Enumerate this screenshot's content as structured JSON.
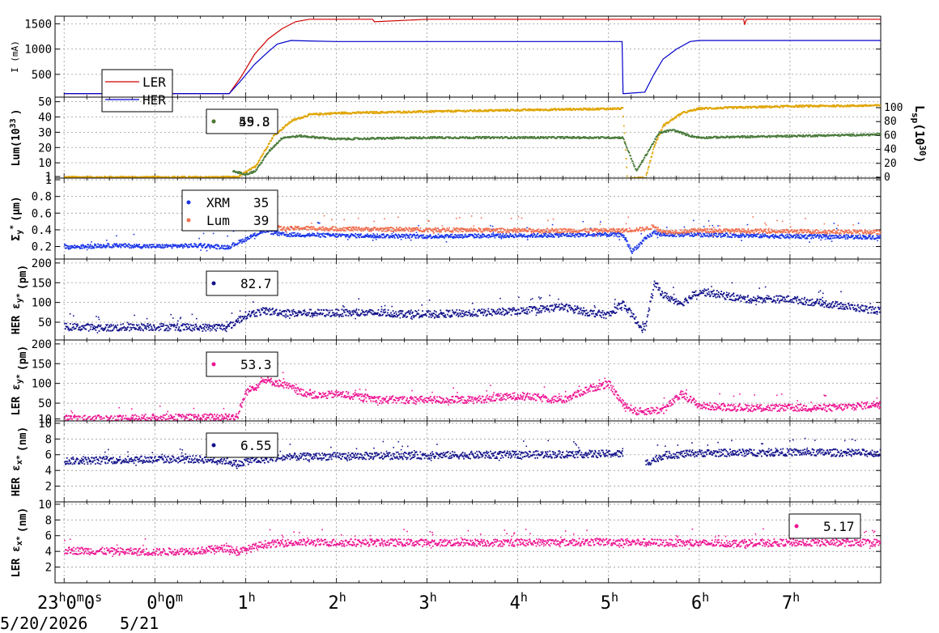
{
  "chart_data": [
    {
      "type": "line",
      "ylabel": "I (mA)",
      "yticks": [
        "500",
        "1000",
        "1500"
      ],
      "ylim": [
        50,
        1650
      ],
      "series": [
        {
          "name": "LER",
          "color": "#d00000",
          "x": [
            -1,
            -0.02,
            0.82,
            0.95,
            1.1,
            1.25,
            1.4,
            1.55,
            1.7,
            1.85,
            2.0,
            2.4,
            2.42,
            3.0,
            4.0,
            5.15,
            5.18,
            5.4,
            5.5,
            5.6,
            5.75,
            5.9,
            6.0,
            6.49,
            6.5,
            6.52,
            7.0,
            8.0
          ],
          "y": [
            120,
            120,
            120,
            450,
            900,
            1200,
            1400,
            1540,
            1590,
            1590,
            1590,
            1590,
            1540,
            1590,
            1590,
            1590,
            1590,
            1590,
            1590,
            1590,
            1590,
            1590,
            1590,
            1590,
            1480,
            1590,
            1590,
            1590
          ]
        },
        {
          "name": "HER",
          "color": "#0000cc",
          "x": [
            -1,
            0.82,
            0.95,
            1.1,
            1.25,
            1.35,
            1.5,
            1.7,
            2.0,
            3.0,
            4.0,
            5.15,
            5.16,
            5.18,
            5.4,
            5.5,
            5.6,
            5.75,
            5.9,
            6.0,
            7.0,
            8.0
          ],
          "y": [
            120,
            120,
            380,
            700,
            950,
            1100,
            1170,
            1160,
            1150,
            1150,
            1150,
            1150,
            120,
            120,
            150,
            500,
            800,
            1000,
            1150,
            1170,
            1170,
            1170
          ]
        }
      ],
      "legend": [
        "LER",
        "HER"
      ]
    },
    {
      "type": "line",
      "ylabel": "Lum(10",
      "ylabel_sup": "33",
      "ylabel_tail": ")",
      "yticks": [
        "1",
        "10",
        "20",
        "30",
        "40",
        "50"
      ],
      "ylim": [
        0,
        53
      ],
      "y2label": "L",
      "y2label_sub": "sp",
      "y2label_mid": "(10",
      "y2label_sup": "30",
      "y2label_tail": ")",
      "y2ticks": [
        "0",
        "20",
        "40",
        "60",
        "80",
        "100"
      ],
      "y2lim": [
        0,
        100
      ],
      "legend_values": [
        "59.3",
        "45.8"
      ],
      "series": [
        {
          "color": "#e0a400",
          "x": [
            -1,
            0.9,
            1.1,
            1.3,
            1.5,
            1.7,
            2.0,
            2.5,
            3.0,
            4.0,
            5.15,
            5.2,
            5.4,
            5.5,
            5.6,
            5.8,
            6.0,
            7.0,
            8.0
          ],
          "y": [
            1,
            1,
            8,
            28,
            38,
            42,
            43,
            43.5,
            44,
            45,
            46,
            0.5,
            0.5,
            22,
            35,
            43,
            46,
            47.5,
            48
          ]
        },
        {
          "color": "#4a7a3a",
          "x": [
            -1,
            0.8,
            0.85,
            1.0,
            1.1,
            1.25,
            1.4,
            1.6,
            1.8,
            2.0,
            3.0,
            4.0,
            5.15,
            5.3,
            5.35,
            5.45,
            5.55,
            5.7,
            5.9,
            6.0,
            7.0,
            8.0
          ],
          "y": [
            null,
            null,
            5,
            3,
            5,
            18,
            27,
            28,
            27,
            26,
            27,
            27,
            27,
            5,
            10,
            20,
            30,
            32,
            28,
            27,
            28,
            29
          ]
        }
      ]
    },
    {
      "type": "scatter",
      "ylabel": "Σ",
      "ylabel_sub": "y",
      "ylabel_sup": "*",
      "ylabel_tail": "(μm)",
      "yticks": [
        "0.2",
        "0.4",
        "0.6",
        "0.8",
        "1"
      ],
      "ylim": [
        0.05,
        1.02
      ],
      "legend": [
        "XRM",
        "Lum"
      ],
      "legend_values": [
        "35",
        "39"
      ],
      "series": [
        {
          "name": "XRM",
          "color": "#1a35e8",
          "x": [
            -1,
            -0.5,
            0,
            0.5,
            0.8,
            1.0,
            1.2,
            1.4,
            1.6,
            2.0,
            3.0,
            4.0,
            5.0,
            5.15,
            5.25,
            5.4,
            5.5,
            5.6,
            6.0,
            7.0,
            8.0
          ],
          "y": [
            0.2,
            0.22,
            0.21,
            0.22,
            0.2,
            0.3,
            0.4,
            0.35,
            0.35,
            0.34,
            0.33,
            0.34,
            0.35,
            0.35,
            0.15,
            0.3,
            0.38,
            0.35,
            0.35,
            0.33,
            0.32
          ]
        },
        {
          "name": "Lum",
          "color": "#f07050",
          "x": [
            1.15,
            1.4,
            1.6,
            2.0,
            3.0,
            4.0,
            5.0,
            5.15,
            5.4,
            5.5,
            5.6,
            6.0,
            7.0,
            8.0
          ],
          "y": [
            0.5,
            0.42,
            0.43,
            0.42,
            0.41,
            0.4,
            0.4,
            0.4,
            0.42,
            0.45,
            0.38,
            0.4,
            0.39,
            0.38
          ]
        }
      ]
    },
    {
      "type": "scatter",
      "ylabel": "HER ε",
      "ylabel_sub": "y*",
      "ylabel_tail": "(pm)",
      "yticks": [
        "50",
        "100",
        "150",
        "200"
      ],
      "ylim": [
        5,
        210
      ],
      "legend_values": [
        "82.7"
      ],
      "series": [
        {
          "color": "#12128a",
          "x": [
            -1,
            -0.5,
            0,
            0.5,
            0.8,
            1.0,
            1.2,
            1.5,
            2.0,
            2.5,
            3.0,
            3.5,
            4.0,
            4.5,
            4.8,
            5.0,
            5.15,
            5.35,
            5.4,
            5.5,
            5.6,
            5.8,
            6.0,
            6.5,
            7.0,
            7.5,
            8.0
          ],
          "y": [
            40,
            38,
            40,
            38,
            40,
            70,
            80,
            75,
            75,
            75,
            72,
            75,
            80,
            90,
            75,
            70,
            100,
            40,
            40,
            150,
            120,
            100,
            130,
            110,
            110,
            95,
            80
          ]
        }
      ]
    },
    {
      "type": "scatter",
      "ylabel": "LER ε",
      "ylabel_sub": "y*",
      "ylabel_tail": "(pm)",
      "yticks": [
        "10",
        "50",
        "100",
        "150",
        "200"
      ],
      "ylim": [
        5,
        210
      ],
      "legend_values": [
        "53.3"
      ],
      "series": [
        {
          "color": "#ee1493",
          "x": [
            -1,
            -0.5,
            0,
            0.5,
            0.9,
            1.0,
            1.2,
            1.4,
            1.6,
            1.8,
            2.0,
            2.5,
            3.0,
            3.5,
            4.0,
            4.5,
            4.8,
            5.0,
            5.15,
            5.3,
            5.6,
            5.8,
            6.0,
            6.5,
            7.0,
            7.5,
            8.0
          ],
          "y": [
            12,
            12,
            15,
            15,
            18,
            80,
            110,
            100,
            80,
            70,
            75,
            60,
            60,
            60,
            70,
            60,
            90,
            100,
            50,
            30,
            35,
            75,
            45,
            40,
            40,
            40,
            50
          ]
        }
      ]
    },
    {
      "type": "scatter",
      "ylabel": "HER ε",
      "ylabel_sub": "x*",
      "ylabel_tail": "(nm)",
      "yticks": [
        "2",
        "4",
        "6",
        "8",
        "10"
      ],
      "ylim": [
        0,
        10.3
      ],
      "legend_values": [
        "6.55"
      ],
      "series": [
        {
          "color": "#12128a",
          "x": [
            -1,
            -0.5,
            0,
            0.5,
            0.8,
            0.9,
            1.0,
            1.5,
            2.0,
            3.0,
            4.0,
            5.0,
            5.15,
            5.35,
            5.4,
            5.6,
            6.0,
            7.0,
            8.0
          ],
          "y": [
            5.3,
            5.4,
            5.5,
            5.5,
            5.3,
            4.8,
            5.3,
            5.8,
            5.9,
            6.0,
            6.1,
            6.2,
            6.2,
            null,
            5.0,
            6.0,
            6.3,
            6.4,
            6.3
          ]
        }
      ]
    },
    {
      "type": "scatter",
      "ylabel": "LER ε",
      "ylabel_sub": "x*",
      "ylabel_tail": "(nm)",
      "yticks": [
        "2",
        "4",
        "6",
        "8",
        "10"
      ],
      "ylim": [
        0,
        10.3
      ],
      "legend_values": [
        "5.17"
      ],
      "series": [
        {
          "color": "#ee1493",
          "x": [
            -1,
            -0.5,
            0,
            0.5,
            0.8,
            0.9,
            1.0,
            1.2,
            1.5,
            2.0,
            3.0,
            4.0,
            5.0,
            6.0,
            7.0,
            8.0
          ],
          "y": [
            4.2,
            4.1,
            4.0,
            4.2,
            4.5,
            4.0,
            4.3,
            5.0,
            5.2,
            5.2,
            5.2,
            5.2,
            5.3,
            5.1,
            5.2,
            5.2
          ]
        }
      ]
    }
  ],
  "x_axis": {
    "labels": [
      {
        "main": "23",
        "sup": "h",
        "main2": "0",
        "sup2": "m",
        "main3": "0",
        "sup3": "s",
        "at": -1
      },
      {
        "main": "0",
        "sup": "h",
        "main2": "0",
        "sup2": "m",
        "at": 0
      },
      {
        "main": "1",
        "sup": "h",
        "at": 1
      },
      {
        "main": "2",
        "sup": "h",
        "at": 2
      },
      {
        "main": "3",
        "sup": "h",
        "at": 3
      },
      {
        "main": "4",
        "sup": "h",
        "at": 4
      },
      {
        "main": "5",
        "sup": "h",
        "at": 5
      },
      {
        "main": "6",
        "sup": "h",
        "at": 6
      },
      {
        "main": "7",
        "sup": "h",
        "at": 7
      }
    ],
    "xlim": [
      -1.1,
      8.0
    ],
    "dates": [
      "5/20/2026",
      "5/21"
    ]
  },
  "grid": true
}
